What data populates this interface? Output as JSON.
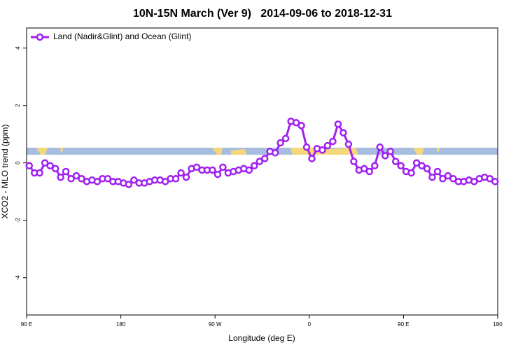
{
  "chart_data": {
    "type": "line",
    "title": "10N-15N March (Ver 9)   2014-09-06 to 2018-12-31",
    "x_label": "Longitude (deg E)",
    "y_label": "XCO2 - MLO trend (ppm)",
    "x": [
      92.5,
      97.5,
      102.5,
      107.5,
      112.5,
      117.5,
      122.5,
      127.5,
      132.5,
      137.5,
      142.5,
      147.5,
      152.5,
      157.5,
      162.5,
      167.5,
      172.5,
      177.5,
      182.5,
      187.5,
      192.5,
      197.5,
      202.5,
      207.5,
      212.5,
      217.5,
      222.5,
      227.5,
      232.5,
      237.5,
      242.5,
      247.5,
      252.5,
      257.5,
      262.5,
      267.5,
      272.5,
      277.5,
      282.5,
      287.5,
      292.5,
      297.5,
      302.5,
      307.5,
      312.5,
      317.5,
      322.5,
      327.5,
      332.5,
      337.5,
      342.5,
      347.5,
      352.5,
      357.5,
      362.5,
      367.5,
      372.5,
      377.5,
      382.5,
      387.5,
      392.5,
      397.5,
      402.5,
      407.5,
      412.5,
      417.5,
      422.5,
      427.5,
      432.5,
      437.5,
      442.5,
      447.5,
      452.5,
      457.5,
      462.5,
      467.5,
      472.5,
      477.5,
      482.5,
      487.5,
      492.5,
      497.5,
      502.5,
      507.5,
      512.5,
      517.5,
      522.5,
      527.5,
      532.5,
      537.5
    ],
    "series": [
      {
        "name": "Land (Nadir&Glint) and Ocean (Glint)",
        "color": "#a020f0",
        "values": [
          -0.1,
          -0.35,
          -0.35,
          0,
          -0.1,
          -0.2,
          -0.5,
          -0.3,
          -0.55,
          -0.45,
          -0.55,
          -0.65,
          -0.6,
          -0.65,
          -0.55,
          -0.55,
          -0.65,
          -0.65,
          -0.7,
          -0.75,
          -0.6,
          -0.7,
          -0.7,
          -0.65,
          -0.6,
          -0.6,
          -0.65,
          -0.55,
          -0.55,
          -0.35,
          -0.5,
          -0.2,
          -0.15,
          -0.25,
          -0.25,
          -0.25,
          -0.4,
          -0.15,
          -0.35,
          -0.3,
          -0.25,
          -0.2,
          -0.25,
          -0.1,
          0.05,
          0.15,
          0.4,
          0.35,
          0.7,
          0.85,
          1.45,
          1.4,
          1.3,
          0.55,
          0.15,
          0.5,
          0.45,
          0.6,
          0.75,
          1.35,
          1.05,
          0.65,
          0.05,
          -0.25,
          -0.2,
          -0.3,
          -0.1,
          0.55,
          0.25,
          0.4,
          0.05,
          -0.1,
          -0.3,
          -0.35,
          0,
          -0.1,
          -0.2,
          -0.5,
          -0.3,
          -0.55,
          -0.45,
          -0.55,
          -0.65,
          -0.65,
          -0.6,
          -0.65,
          -0.55,
          -0.5,
          -0.55,
          -0.65
        ]
      }
    ],
    "xlim": [
      90,
      540
    ],
    "xticks": [
      {
        "value": 90,
        "label": "90 E"
      },
      {
        "value": 180,
        "label": "180"
      },
      {
        "value": 270,
        "label": "90 W"
      },
      {
        "value": 360,
        "label": "0"
      },
      {
        "value": 450,
        "label": "90 E"
      },
      {
        "value": 540,
        "label": "180"
      }
    ],
    "ylim": [
      -5.3,
      4.7
    ],
    "yticks": [
      -4,
      -2,
      0,
      2,
      4
    ],
    "legend": "top-left"
  }
}
